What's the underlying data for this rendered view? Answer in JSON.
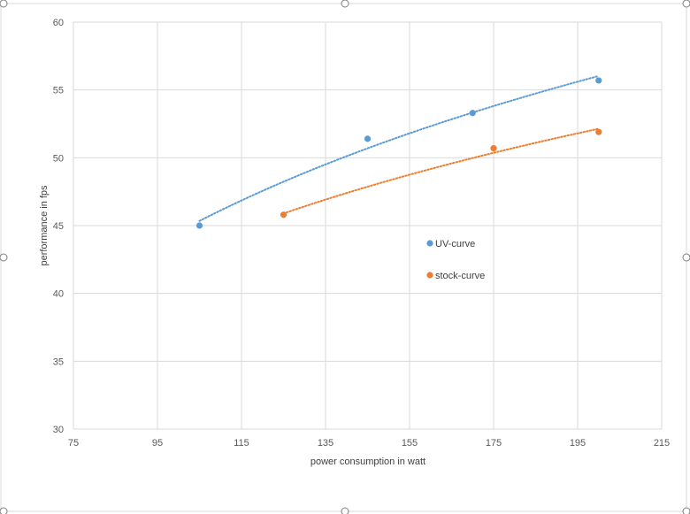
{
  "chart_data": {
    "type": "scatter",
    "title": "",
    "xlabel": "power consumption in watt",
    "ylabel": "performance in fps",
    "xlim": [
      75,
      215
    ],
    "ylim": [
      30,
      60
    ],
    "xticks": [
      75,
      95,
      115,
      135,
      155,
      175,
      195,
      215
    ],
    "yticks": [
      30,
      35,
      40,
      45,
      50,
      55,
      60
    ],
    "grid": true,
    "legend_position": "center",
    "series": [
      {
        "name": "UV-curve",
        "color": "#5b9bd5",
        "points": [
          [
            105,
            45.0
          ],
          [
            145,
            51.4
          ],
          [
            170,
            53.3
          ],
          [
            200,
            55.7
          ]
        ],
        "trendline": "dotted"
      },
      {
        "name": "stock-curve",
        "color": "#ed7d31",
        "points": [
          [
            125,
            45.8
          ],
          [
            175,
            50.7
          ],
          [
            200,
            51.9
          ]
        ],
        "trendline": "dotted"
      }
    ]
  }
}
